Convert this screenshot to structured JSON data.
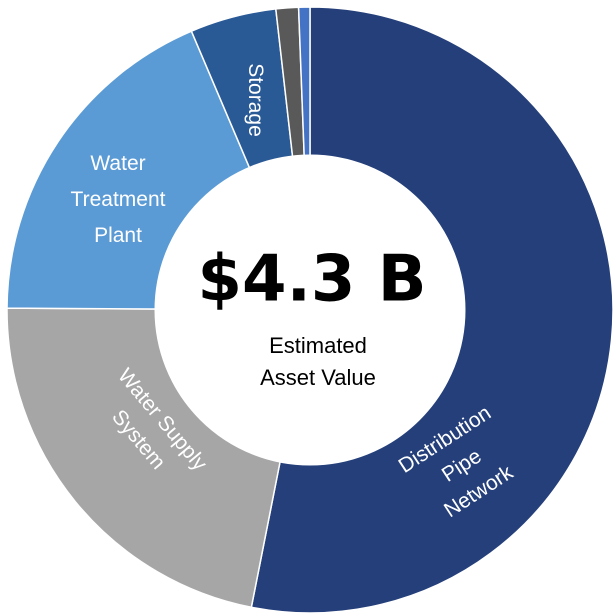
{
  "chart_data": {
    "type": "donut",
    "center_title": "$4.3 B",
    "center_label": [
      "Estimated",
      "Asset Value"
    ],
    "categories": [
      [
        "Distribution",
        "Pipe",
        "Network"
      ],
      [
        "Water Supply",
        "System"
      ],
      [
        "Water",
        "Treatment",
        "Plant"
      ],
      [
        "Storage"
      ],
      null,
      null
    ],
    "values": [
      53.1,
      22.0,
      18.5,
      4.6,
      1.2,
      0.6
    ],
    "colors": [
      "#243f7a",
      "#a6a6a6",
      "#5b9bd5",
      "#2a5a96",
      "#595959",
      "#4472c4"
    ]
  }
}
